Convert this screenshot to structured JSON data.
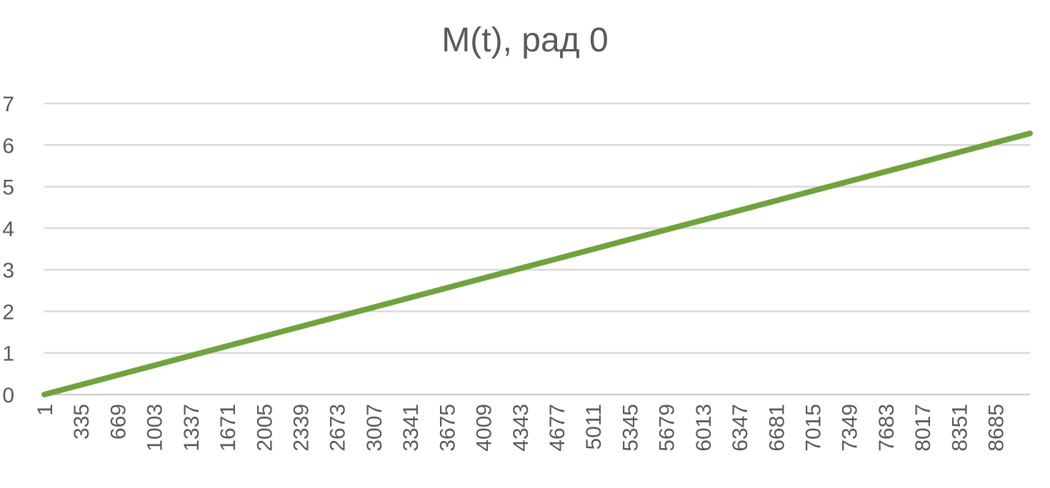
{
  "chart_data": {
    "type": "line",
    "title": "M(t), рад 0",
    "xlabel": "",
    "ylabel": "",
    "x_tick_labels": [
      "1",
      "335",
      "669",
      "1003",
      "1337",
      "1671",
      "2005",
      "2339",
      "2673",
      "3007",
      "3341",
      "3675",
      "4009",
      "4343",
      "4677",
      "5011",
      "5345",
      "5679",
      "6013",
      "6347",
      "6681",
      "7015",
      "7349",
      "7683",
      "8017",
      "8351",
      "8685"
    ],
    "y_tick_labels": [
      "0",
      "1",
      "2",
      "3",
      "4",
      "5",
      "6",
      "7"
    ],
    "ylim": [
      0,
      7
    ],
    "xlim": [
      1,
      9001
    ],
    "grid": true,
    "legend": "none",
    "series": [
      {
        "color": "#70a33f",
        "x": [
          1,
          9001
        ],
        "y": [
          0,
          6.28
        ]
      }
    ]
  }
}
